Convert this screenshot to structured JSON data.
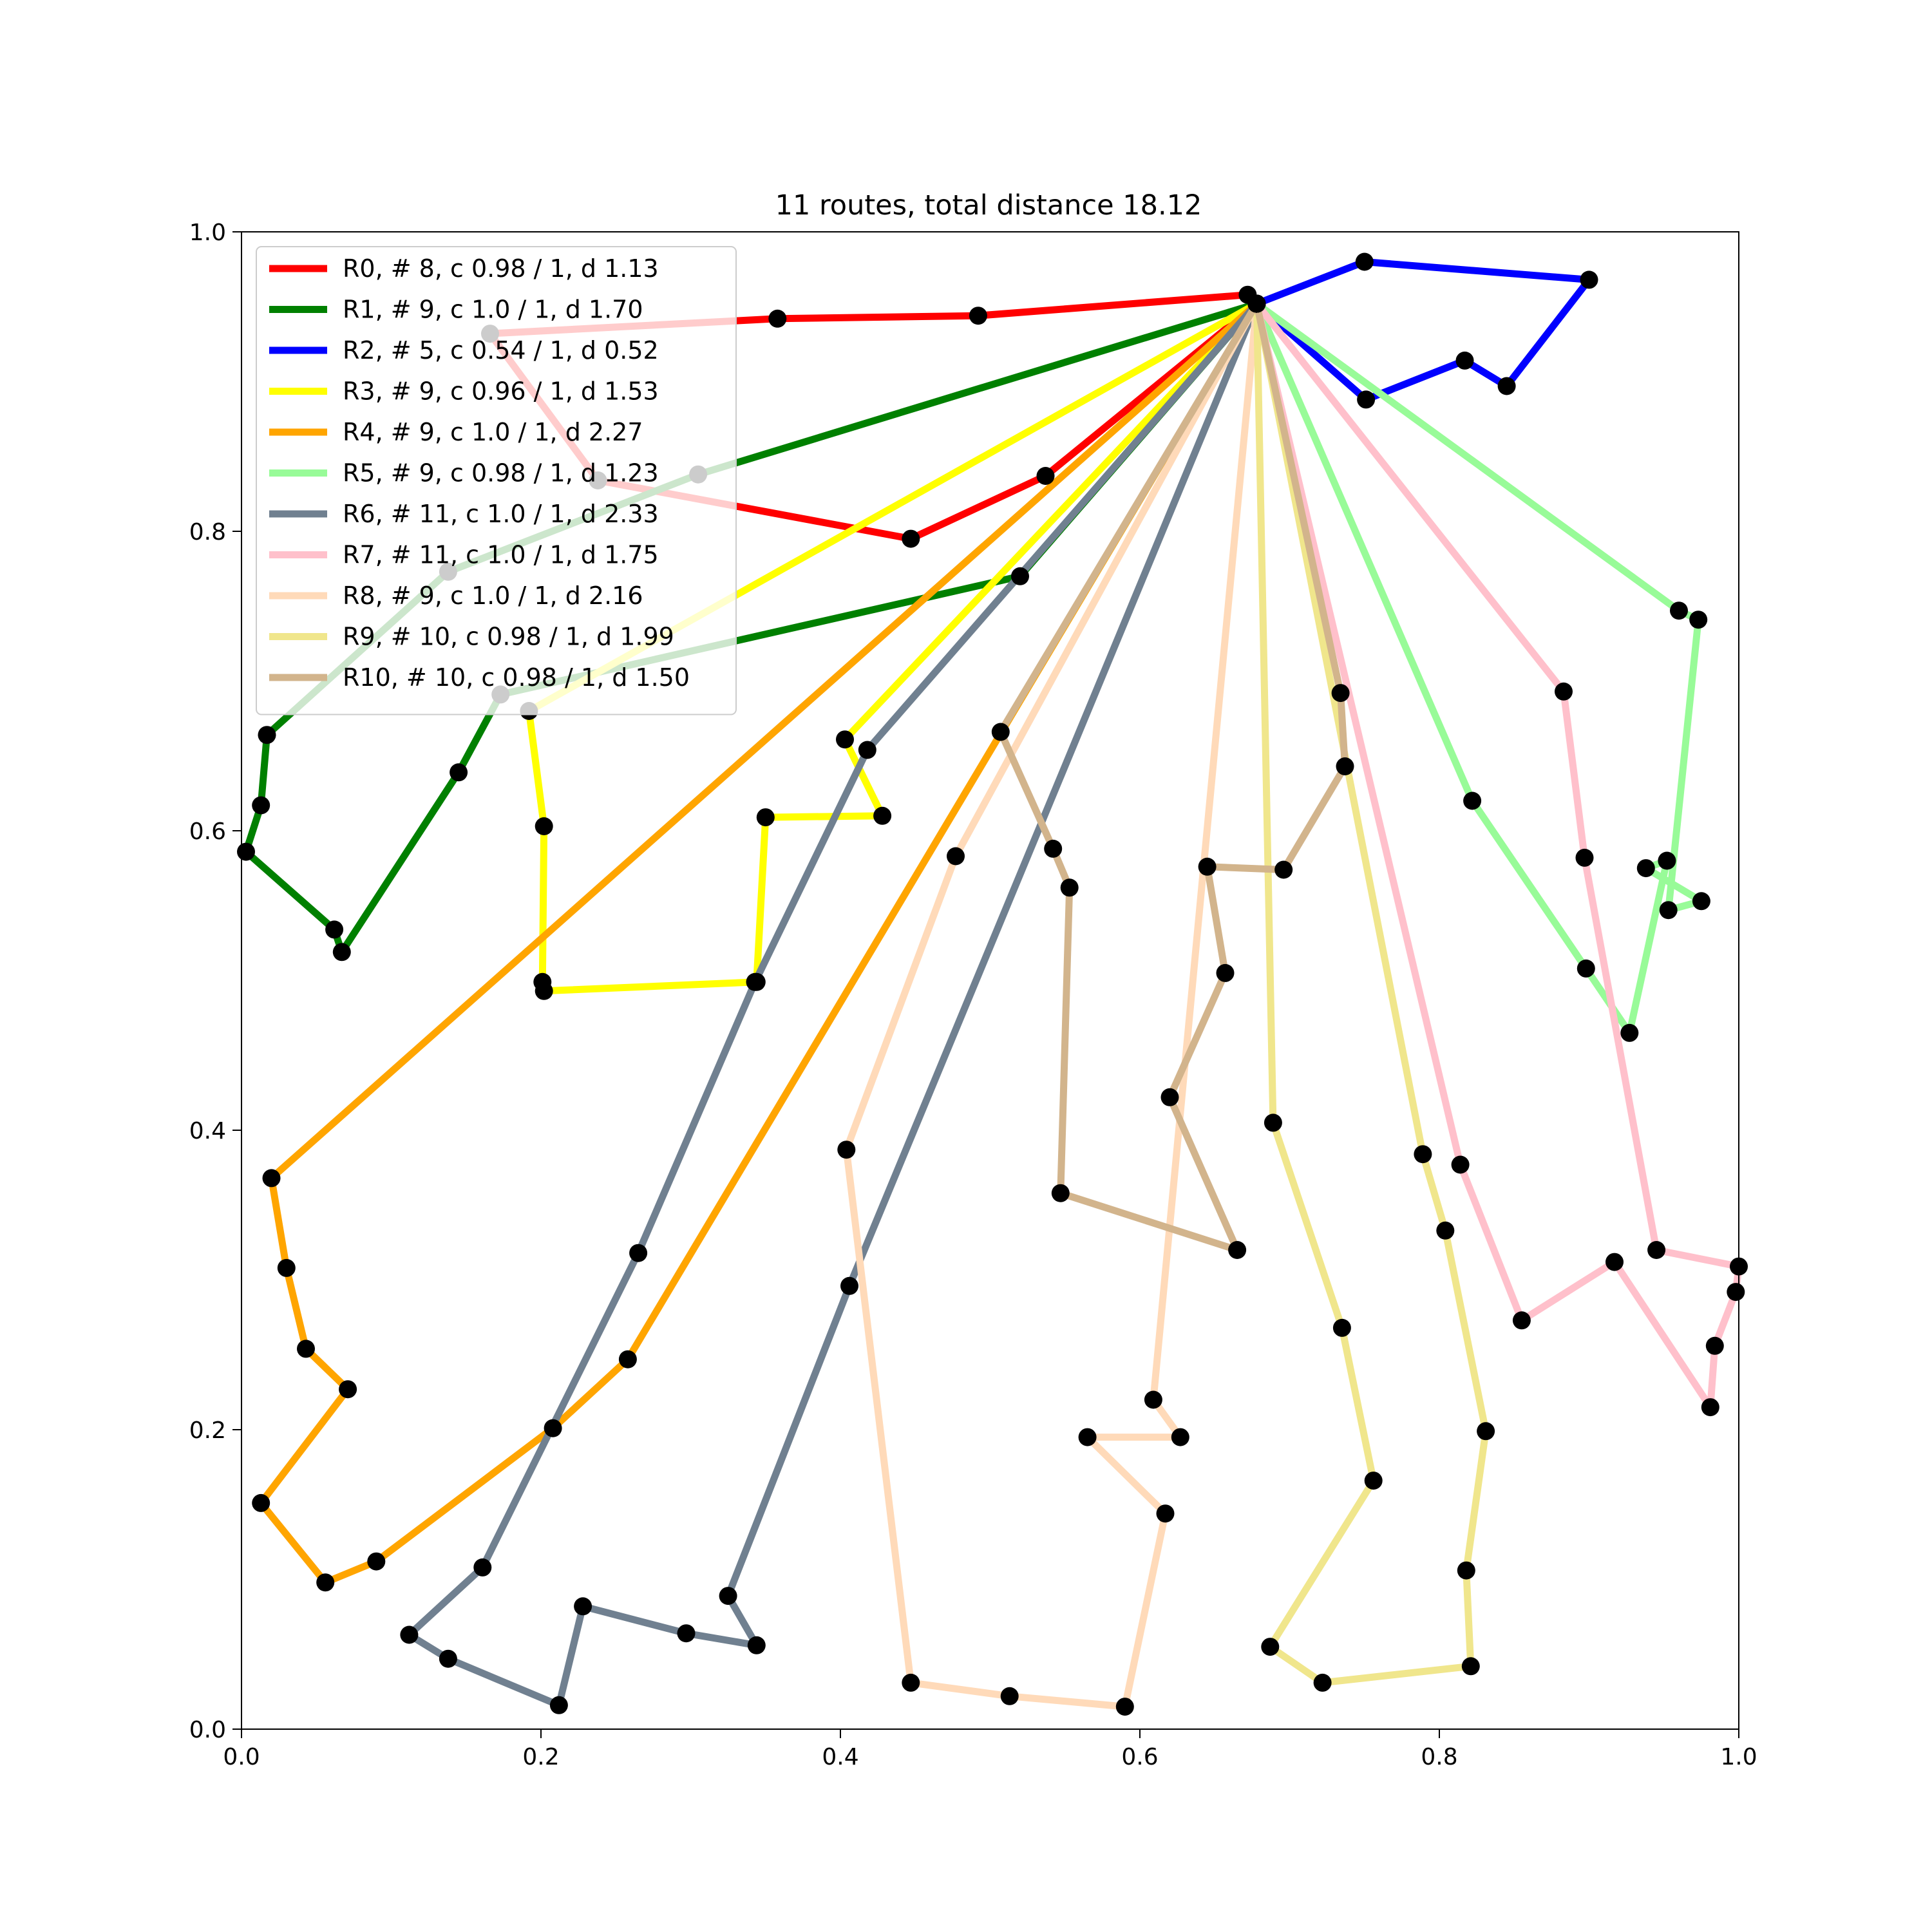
{
  "chart_data": {
    "type": "line",
    "title": "11 routes, total distance 18.12",
    "xlabel": "",
    "ylabel": "",
    "xlim": [
      0.0,
      1.0
    ],
    "ylim": [
      0.0,
      1.0
    ],
    "xticks": [
      "0.0",
      "0.2",
      "0.4",
      "0.6",
      "0.8",
      "1.0"
    ],
    "yticks": [
      "0.0",
      "0.2",
      "0.4",
      "0.6",
      "0.8",
      "1.0"
    ],
    "grid": false,
    "legend_position": "upper-left",
    "depot": [
      0.678,
      0.952
    ],
    "series": [
      {
        "name": "R0, # 8, c 0.98 / 1, d 1.13",
        "color": "#ff0000",
        "points": [
          [
            0.678,
            0.952
          ],
          [
            0.672,
            0.958
          ],
          [
            0.492,
            0.944
          ],
          [
            0.358,
            0.942
          ],
          [
            0.166,
            0.932
          ],
          [
            0.238,
            0.834
          ],
          [
            0.447,
            0.795
          ],
          [
            0.537,
            0.837
          ],
          [
            0.678,
            0.952
          ]
        ]
      },
      {
        "name": "R1, # 9, c 1.0 / 1, d 1.70",
        "color": "#008000",
        "points": [
          [
            0.678,
            0.952
          ],
          [
            0.305,
            0.838
          ],
          [
            0.138,
            0.773
          ],
          [
            0.017,
            0.664
          ],
          [
            0.013,
            0.617
          ],
          [
            0.003,
            0.586
          ],
          [
            0.062,
            0.534
          ],
          [
            0.067,
            0.519
          ],
          [
            0.145,
            0.639
          ],
          [
            0.173,
            0.691
          ],
          [
            0.52,
            0.77
          ],
          [
            0.678,
            0.952
          ]
        ]
      },
      {
        "name": "R2, # 5, c 0.54 / 1, d 0.52",
        "color": "#0000ff",
        "points": [
          [
            0.678,
            0.952
          ],
          [
            0.75,
            0.98
          ],
          [
            0.9,
            0.968
          ],
          [
            0.845,
            0.897
          ],
          [
            0.817,
            0.914
          ],
          [
            0.751,
            0.888
          ],
          [
            0.678,
            0.952
          ]
        ]
      },
      {
        "name": "R3, # 9, c 0.96 / 1, d 1.53",
        "color": "#ffff00",
        "points": [
          [
            0.678,
            0.952
          ],
          [
            0.192,
            0.68
          ],
          [
            0.202,
            0.603
          ],
          [
            0.201,
            0.499
          ],
          [
            0.202,
            0.493
          ],
          [
            0.344,
            0.499
          ],
          [
            0.35,
            0.609
          ],
          [
            0.428,
            0.61
          ],
          [
            0.403,
            0.661
          ],
          [
            0.678,
            0.952
          ]
        ]
      },
      {
        "name": "R4, # 9, c 1.0 / 1, d 2.27",
        "color": "#ffa500",
        "points": [
          [
            0.678,
            0.952
          ],
          [
            0.02,
            0.368
          ],
          [
            0.03,
            0.308
          ],
          [
            0.043,
            0.254
          ],
          [
            0.071,
            0.227
          ],
          [
            0.013,
            0.151
          ],
          [
            0.056,
            0.098
          ],
          [
            0.09,
            0.112
          ],
          [
            0.208,
            0.201
          ],
          [
            0.258,
            0.247
          ],
          [
            0.678,
            0.952
          ]
        ]
      },
      {
        "name": "R5, # 9, c 0.98 / 1, d 1.23",
        "color": "#98fb98",
        "points": [
          [
            0.678,
            0.952
          ],
          [
            0.96,
            0.747
          ],
          [
            0.973,
            0.741
          ],
          [
            0.953,
            0.547
          ],
          [
            0.975,
            0.553
          ],
          [
            0.938,
            0.575
          ],
          [
            0.952,
            0.58
          ],
          [
            0.927,
            0.465
          ],
          [
            0.898,
            0.508
          ],
          [
            0.822,
            0.62
          ],
          [
            0.678,
            0.952
          ]
        ]
      },
      {
        "name": "R6, # 11, c 1.0 / 1, d 2.33",
        "color": "#708090",
        "points": [
          [
            0.678,
            0.952
          ],
          [
            0.418,
            0.654
          ],
          [
            0.343,
            0.499
          ],
          [
            0.265,
            0.318
          ],
          [
            0.161,
            0.108
          ],
          [
            0.112,
            0.063
          ],
          [
            0.138,
            0.047
          ],
          [
            0.212,
            0.016
          ],
          [
            0.228,
            0.082
          ],
          [
            0.297,
            0.064
          ],
          [
            0.344,
            0.056
          ],
          [
            0.325,
            0.089
          ],
          [
            0.406,
            0.296
          ],
          [
            0.678,
            0.952
          ]
        ]
      },
      {
        "name": "R7, # 11, c 1.0 / 1, d 1.75",
        "color": "#ffc0cb",
        "points": [
          [
            0.678,
            0.952
          ],
          [
            0.883,
            0.693
          ],
          [
            0.897,
            0.582
          ],
          [
            0.945,
            0.32
          ],
          [
            1.0,
            0.309
          ],
          [
            0.998,
            0.292
          ],
          [
            0.984,
            0.256
          ],
          [
            0.981,
            0.215
          ],
          [
            0.917,
            0.312
          ],
          [
            0.855,
            0.273
          ],
          [
            0.814,
            0.377
          ],
          [
            0.678,
            0.952
          ]
        ]
      },
      {
        "name": "R8, # 9, c 1.0 / 1, d 2.16",
        "color": "#ffdab9",
        "points": [
          [
            0.678,
            0.952
          ],
          [
            0.477,
            0.583
          ],
          [
            0.404,
            0.387
          ],
          [
            0.447,
            0.031
          ],
          [
            0.513,
            0.022
          ],
          [
            0.59,
            0.015
          ],
          [
            0.617,
            0.144
          ],
          [
            0.565,
            0.195
          ],
          [
            0.627,
            0.195
          ],
          [
            0.609,
            0.22
          ],
          [
            0.678,
            0.952
          ]
        ]
      },
      {
        "name": "R9, # 10, c 0.98 / 1, d 1.99",
        "color": "#f0e68c",
        "points": [
          [
            0.678,
            0.952
          ],
          [
            0.689,
            0.405
          ],
          [
            0.735,
            0.268
          ],
          [
            0.756,
            0.166
          ],
          [
            0.687,
            0.055
          ],
          [
            0.722,
            0.031
          ],
          [
            0.821,
            0.042
          ],
          [
            0.818,
            0.106
          ],
          [
            0.831,
            0.199
          ],
          [
            0.804,
            0.333
          ],
          [
            0.789,
            0.384
          ],
          [
            0.678,
            0.952
          ]
        ]
      },
      {
        "name": "R10, # 10, c 0.98 / 1, d 1.50",
        "color": "#d2b48c",
        "points": [
          [
            0.678,
            0.952
          ],
          [
            0.507,
            0.666
          ],
          [
            0.542,
            0.588
          ],
          [
            0.553,
            0.562
          ],
          [
            0.547,
            0.358
          ],
          [
            0.665,
            0.32
          ],
          [
            0.62,
            0.422
          ],
          [
            0.657,
            0.505
          ],
          [
            0.645,
            0.576
          ],
          [
            0.696,
            0.574
          ],
          [
            0.737,
            0.643
          ],
          [
            0.734,
            0.692
          ],
          [
            0.678,
            0.952
          ]
        ]
      }
    ]
  }
}
